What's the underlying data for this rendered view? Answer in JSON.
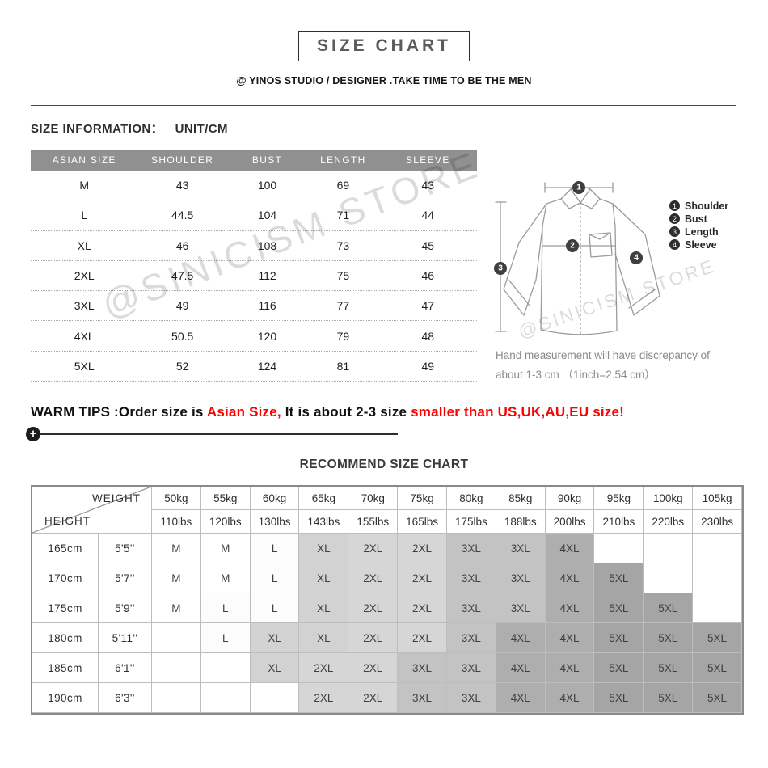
{
  "header": {
    "title": "SIZE CHART",
    "subtitle": "@ YINOS STUDIO / DESIGNER .TAKE TIME TO BE THE MEN"
  },
  "size_info": {
    "label": "SIZE INFORMATION：",
    "unit": "UNIT/CM",
    "columns": [
      "ASIAN SIZE",
      "SHOULDER",
      "BUST",
      "LENGTH",
      "SLEEVE"
    ],
    "rows": [
      [
        "M",
        "43",
        "100",
        "69",
        "43"
      ],
      [
        "L",
        "44.5",
        "104",
        "71",
        "44"
      ],
      [
        "XL",
        "46",
        "108",
        "73",
        "45"
      ],
      [
        "2XL",
        "47.5",
        "112",
        "75",
        "46"
      ],
      [
        "3XL",
        "49",
        "116",
        "77",
        "47"
      ],
      [
        "4XL",
        "50.5",
        "120",
        "79",
        "48"
      ],
      [
        "5XL",
        "52",
        "124",
        "81",
        "49"
      ]
    ]
  },
  "diagram": {
    "legend": [
      {
        "num": "1",
        "label": "Shoulder"
      },
      {
        "num": "2",
        "label": "Bust"
      },
      {
        "num": "3",
        "label": "Length"
      },
      {
        "num": "4",
        "label": "Sleeve"
      }
    ],
    "note_line1": "Hand measurement will have discrepancy of",
    "note_line2": "about 1-3 cm （1inch=2.54 cm）"
  },
  "watermark": {
    "text": "@SINICISM STORE"
  },
  "warm_tips": {
    "segments": [
      {
        "text": "WARM TIPS :Order size is ",
        "color": "#111111"
      },
      {
        "text": "Asian Size,",
        "color": "#fe0000"
      },
      {
        "text": " It is about 2-3 size ",
        "color": "#111111"
      },
      {
        "text": "smaller than US,UK,AU,EU size!",
        "color": "#fe0000"
      }
    ]
  },
  "icons": {
    "divider": "plus"
  },
  "colors": {
    "accent_red": "#fe0000",
    "table_header_bg": "#909090"
  },
  "recommend": {
    "title": "RECOMMEND SIZE CHART",
    "corner": {
      "top": "WEIGHT",
      "bottom": "HEIGHT"
    },
    "weights_kg": [
      "50kg",
      "55kg",
      "60kg",
      "65kg",
      "70kg",
      "75kg",
      "80kg",
      "85kg",
      "90kg",
      "95kg",
      "100kg",
      "105kg"
    ],
    "weights_lbs": [
      "110lbs",
      "120lbs",
      "130lbs",
      "143lbs",
      "155lbs",
      "165lbs",
      "175lbs",
      "188lbs",
      "200lbs",
      "210lbs",
      "220lbs",
      "230lbs"
    ],
    "heights": [
      [
        "165cm",
        "5'5''"
      ],
      [
        "170cm",
        "5'7''"
      ],
      [
        "175cm",
        "5'9''"
      ],
      [
        "180cm",
        "5'11''"
      ],
      [
        "185cm",
        "6'1''"
      ],
      [
        "190cm",
        "6'3''"
      ]
    ],
    "cells": [
      [
        "M",
        "M",
        "L",
        "XL",
        "2XL",
        "2XL",
        "3XL",
        "3XL",
        "4XL",
        "",
        "",
        ""
      ],
      [
        "M",
        "M",
        "L",
        "XL",
        "2XL",
        "2XL",
        "3XL",
        "3XL",
        "4XL",
        "5XL",
        "",
        ""
      ],
      [
        "M",
        "L",
        "L",
        "XL",
        "2XL",
        "2XL",
        "3XL",
        "3XL",
        "4XL",
        "5XL",
        "5XL",
        ""
      ],
      [
        "",
        "L",
        "XL",
        "XL",
        "2XL",
        "2XL",
        "3XL",
        "4XL",
        "4XL",
        "5XL",
        "5XL",
        "5XL"
      ],
      [
        "",
        "",
        "XL",
        "2XL",
        "2XL",
        "3XL",
        "3XL",
        "4XL",
        "4XL",
        "5XL",
        "5XL",
        "5XL"
      ],
      [
        "",
        "",
        "",
        "2XL",
        "2XL",
        "3XL",
        "3XL",
        "4XL",
        "4XL",
        "5XL",
        "5XL",
        "5XL"
      ]
    ],
    "shades": {
      "M": "#ffffff",
      "L": "#fcfcfc",
      "XL": "#d2d2d2",
      "2XL": "#d6d6d6",
      "3XL": "#c3c3c3",
      "4XL": "#aeaeae",
      "5XL": "#a5a5a5",
      "": "#ffffff"
    }
  }
}
